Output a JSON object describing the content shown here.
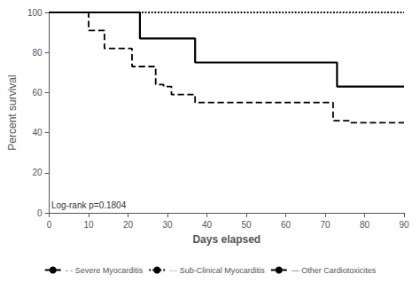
{
  "chart_data": {
    "type": "line",
    "xlabel": "Days elapsed",
    "ylabel": "Percent survival",
    "xlim": [
      0,
      90
    ],
    "ylim": [
      0,
      100
    ],
    "xticks": [
      0,
      10,
      20,
      30,
      40,
      50,
      60,
      70,
      80,
      90
    ],
    "yticks": [
      0,
      20,
      40,
      60,
      80,
      100
    ],
    "grid": false,
    "legend": "bottom",
    "annotations": [
      "Log-rank p=0.1804"
    ],
    "series": [
      {
        "name": "- - Severe Myocarditis",
        "type": "step",
        "line_style": "dashed",
        "color": "black",
        "x": [
          0,
          10,
          14,
          21,
          22,
          27,
          29,
          31,
          37,
          38,
          72,
          76,
          79,
          90
        ],
        "values": [
          100,
          91,
          82,
          73,
          73,
          64,
          63,
          59,
          55,
          55,
          46,
          45,
          45,
          45
        ]
      },
      {
        "name": "··· Sub-Clinical Myocarditis",
        "type": "line",
        "line_style": "dotted",
        "color": "black",
        "x": [
          0,
          90
        ],
        "values": [
          100,
          100
        ]
      },
      {
        "name": "— Other Cardiotoxicites",
        "type": "step",
        "line_style": "solid",
        "color": "black",
        "x": [
          0,
          23,
          37,
          38,
          73,
          75,
          90
        ],
        "values": [
          100,
          87,
          75,
          75,
          63,
          63,
          63
        ]
      }
    ]
  }
}
